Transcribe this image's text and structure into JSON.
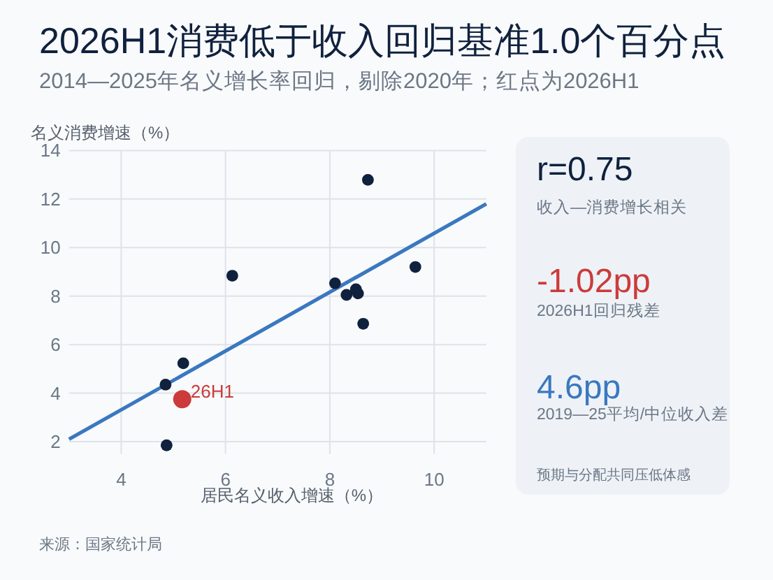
{
  "chart_data": [
    {
      "type": "scatter",
      "title": "2026H1消费低于收入回归基准1.0个百分点",
      "subtitle": "2014—2025年名义增长率回归，剔除2020年；红点为2026H1",
      "xlabel": "居民名义收入增速（%）",
      "ylabel": "名义消费增速（%）",
      "xlim": [
        3,
        11
      ],
      "ylim": [
        1.5,
        14
      ],
      "xticks": [
        4,
        6,
        8,
        10
      ],
      "yticks": [
        2,
        4,
        6,
        8,
        10,
        12,
        14
      ],
      "grid": true,
      "marker": "circle",
      "series": [
        {
          "color": "#3a78c0",
          "type": "line",
          "marker": "none",
          "x": [
            3,
            11
          ],
          "values": [
            2.1,
            11.8
          ]
        },
        {
          "color": "#0f213d",
          "x": [
            8.73,
            6.13,
            8.1,
            8.32,
            8.5,
            8.54,
            8.64,
            9.64,
            5.19,
            4.85,
            4.87
          ],
          "values": [
            12.79,
            8.84,
            8.53,
            8.05,
            8.28,
            8.11,
            6.86,
            9.2,
            5.23,
            4.35,
            1.85
          ]
        },
        {
          "name": "26H1",
          "color": "#cc3b3b",
          "x": [
            5.17
          ],
          "values": [
            3.75
          ]
        }
      ],
      "annotations": [
        "来源：国家统计局"
      ]
    },
    {
      "type": "other",
      "annotations": [
        "r=0.75",
        "收入—消费增长相关",
        "-1.02pp",
        "2026H1回归残差",
        "4.6pp",
        "2019—25平均/中位收入差",
        "预期与分配共同压低体感"
      ]
    }
  ]
}
